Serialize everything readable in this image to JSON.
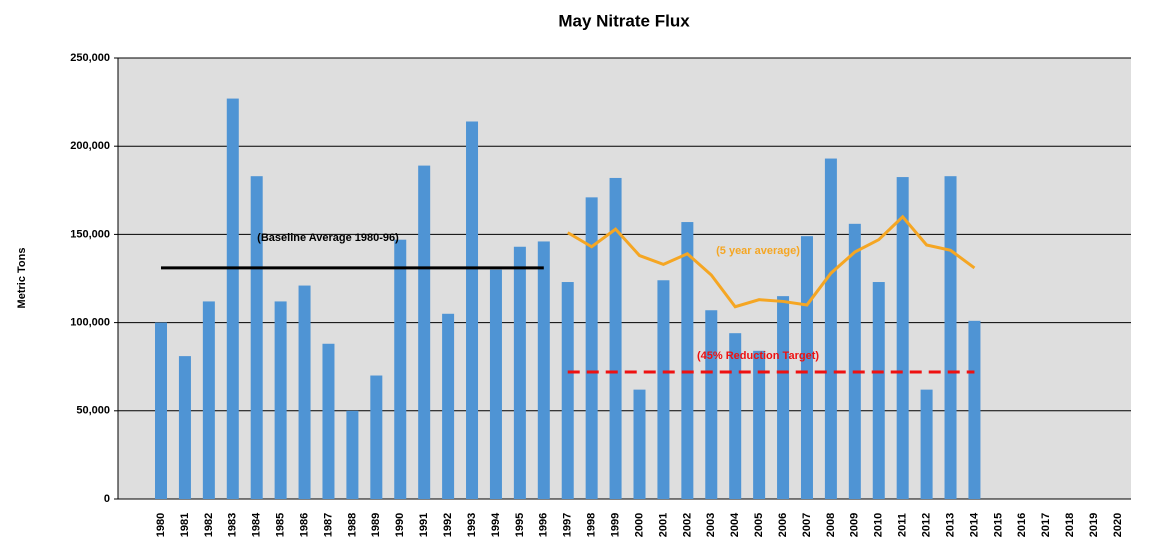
{
  "chart_data": {
    "type": "bar",
    "title": "May Nitrate Flux",
    "y_label": "Metric Tons",
    "categories": [
      "1980",
      "1981",
      "1982",
      "1983",
      "1984",
      "1985",
      "1986",
      "1987",
      "1988",
      "1989",
      "1990",
      "1991",
      "1992",
      "1993",
      "1994",
      "1995",
      "1996",
      "1997",
      "1998",
      "1999",
      "2000",
      "2001",
      "2002",
      "2003",
      "2004",
      "2005",
      "2006",
      "2007",
      "2008",
      "2009",
      "2010",
      "2011",
      "2012",
      "2013",
      "2014",
      "2015",
      "2016",
      "2017",
      "2018",
      "2019",
      "2020"
    ],
    "series": [
      {
        "type": "bar",
        "color": "#4f94d4",
        "values": [
          100000,
          81000,
          112000,
          227000,
          183000,
          112000,
          121000,
          88000,
          50000,
          70000,
          147000,
          189000,
          105000,
          214000,
          130000,
          143000,
          146000,
          123000,
          171000,
          182000,
          62000,
          124000,
          157000,
          107000,
          94000,
          84000,
          115000,
          149000,
          193000,
          156000,
          123000,
          182500,
          62000,
          183000,
          101000,
          null,
          null,
          null,
          null,
          null,
          null
        ]
      },
      {
        "type": "line",
        "name": "(5 year average)",
        "color": "#f5a623",
        "values": [
          null,
          null,
          null,
          null,
          null,
          null,
          null,
          null,
          null,
          null,
          null,
          null,
          null,
          null,
          null,
          null,
          null,
          151000,
          143000,
          153000,
          138000,
          133000,
          139000,
          127000,
          109000,
          113000,
          112000,
          110000,
          128000,
          140000,
          147000,
          160000,
          144000,
          141000,
          131000,
          null,
          null,
          null,
          null,
          null,
          null
        ]
      },
      {
        "type": "line",
        "name": "(Baseline Average 1980-96)",
        "color": "#000000",
        "values": [
          131000,
          131000,
          131000,
          131000,
          131000,
          131000,
          131000,
          131000,
          131000,
          131000,
          131000,
          131000,
          131000,
          131000,
          131000,
          131000,
          131000,
          null,
          null,
          null,
          null,
          null,
          null,
          null,
          null,
          null,
          null,
          null,
          null,
          null,
          null,
          null,
          null,
          null,
          null,
          null,
          null,
          null,
          null,
          null,
          null
        ]
      },
      {
        "type": "line",
        "name": "(45% Reduction Target)",
        "color": "#ee1111",
        "dashed": true,
        "values": [
          null,
          null,
          null,
          null,
          null,
          null,
          null,
          null,
          null,
          null,
          null,
          null,
          null,
          null,
          null,
          null,
          null,
          72000,
          72000,
          72000,
          72000,
          72000,
          72000,
          72000,
          72000,
          72000,
          72000,
          72000,
          72000,
          72000,
          72000,
          72000,
          72000,
          72000,
          72000,
          null,
          null,
          null,
          null,
          null,
          null
        ]
      }
    ],
    "ylim": [
      0,
      250000
    ],
    "yticks": [
      0,
      {
        "value": 50000,
        "label": "50,000"
      },
      {
        "value": 100000,
        "label": "100,000"
      },
      {
        "value": 150000,
        "label": "150,000"
      },
      {
        "value": 200000,
        "label": "200,000"
      },
      {
        "value": 250000,
        "label": "250,000"
      }
    ],
    "grid": true
  }
}
